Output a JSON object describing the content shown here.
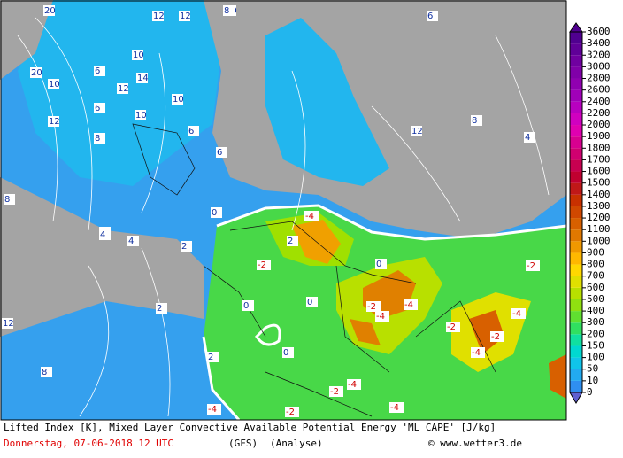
{
  "colorbar": {
    "levels": [
      0,
      10,
      50,
      100,
      150,
      200,
      300,
      400,
      500,
      600,
      700,
      800,
      900,
      1000,
      1100,
      1200,
      1300,
      1400,
      1500,
      1600,
      1700,
      1800,
      1900,
      2000,
      2200,
      2400,
      2600,
      2800,
      3000,
      3200,
      3400,
      3600
    ],
    "colors": [
      "#2f8ff0",
      "#22aaf0",
      "#10c4ea",
      "#00d8d0",
      "#10e0a0",
      "#30e060",
      "#60e030",
      "#90e010",
      "#b8e000",
      "#e0e000",
      "#ffd800",
      "#ffb800",
      "#f09800",
      "#e07800",
      "#d86000",
      "#d04800",
      "#c83000",
      "#c01818",
      "#c00030",
      "#c80050",
      "#d00070",
      "#d80090",
      "#e000b0",
      "#d000c0",
      "#b800c0",
      "#a000b8",
      "#9000b0",
      "#8000a8",
      "#7000a0",
      "#600098",
      "#500090"
    ]
  },
  "caption": {
    "title": "Lifted Index [K], Mixed Layer Convective Available Potential Energy 'ML CAPE' [J/kg]",
    "date": "Donnerstag, 07-06-2018  12 UTC",
    "model": "(GFS)",
    "run": "(Analyse)",
    "credit": "© www.wetter3.de"
  },
  "contour_labels": [
    "20",
    "12",
    "12",
    "10",
    "10",
    "6",
    "20",
    "10",
    "14",
    "12",
    "10",
    "8",
    "10",
    "6",
    "12",
    "8",
    "6",
    "6",
    "8",
    "4",
    "4",
    "2",
    "0",
    "-4",
    "-2",
    "-4",
    "0",
    "-2",
    "-4",
    "-2",
    "-4",
    "-4",
    "-2",
    "-4",
    "-2",
    "-4",
    "0",
    "2",
    "4",
    "8",
    "12",
    "2",
    "-2",
    "0",
    "2",
    "12",
    "6",
    "8",
    "4",
    "0",
    "-2",
    "-4"
  ]
}
